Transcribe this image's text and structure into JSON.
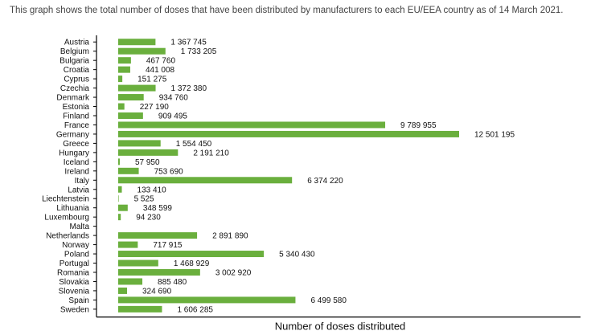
{
  "caption": "This graph shows the total number of doses that have been distributed by manufacturers to each EU/EEA country as of 14 March 2021.",
  "colors": {
    "bar": "#6aaf3d",
    "axis": "#000000",
    "text": "#111111",
    "caption": "#444444"
  },
  "chart_data": {
    "type": "bar",
    "orientation": "horizontal",
    "title": "",
    "xlabel": "Number of doses distributed",
    "ylabel": "",
    "xlim": [
      0,
      12501195
    ],
    "grid": false,
    "legend": "none",
    "categories": [
      "Austria",
      "Belgium",
      "Bulgaria",
      "Croatia",
      "Cyprus",
      "Czechia",
      "Denmark",
      "Estonia",
      "Finland",
      "France",
      "Germany",
      "Greece",
      "Hungary",
      "Iceland",
      "Ireland",
      "Italy",
      "Latvia",
      "Liechtenstein",
      "Lithuania",
      "Luxembourg",
      "Malta",
      "Netherlands",
      "Norway",
      "Poland",
      "Portugal",
      "Romania",
      "Slovakia",
      "Slovenia",
      "Spain",
      "Sweden"
    ],
    "values": [
      1367745,
      1733205,
      467760,
      441008,
      151275,
      1372380,
      934760,
      227190,
      909495,
      9789955,
      12501195,
      1554450,
      2191210,
      57950,
      753690,
      6374220,
      133410,
      5525,
      348599,
      94230,
      null,
      2891890,
      717915,
      5340430,
      1468929,
      3002920,
      885480,
      324690,
      6499580,
      1606285
    ],
    "labels": [
      "1 367 745",
      "1 733 205",
      "467 760",
      "441 008",
      "151 275",
      "1 372 380",
      "934 760",
      "227 190",
      "909 495",
      "9 789 955",
      "12 501 195",
      "1 554 450",
      "2 191 210",
      "57 950",
      "753 690",
      "6 374 220",
      "133 410",
      "5 525",
      "348 599",
      "94 230",
      "",
      "2 891 890",
      "717 915",
      "5 340 430",
      "1 468 929",
      "3 002 920",
      "885 480",
      "324 690",
      "6 499 580",
      "1 606 285"
    ]
  }
}
